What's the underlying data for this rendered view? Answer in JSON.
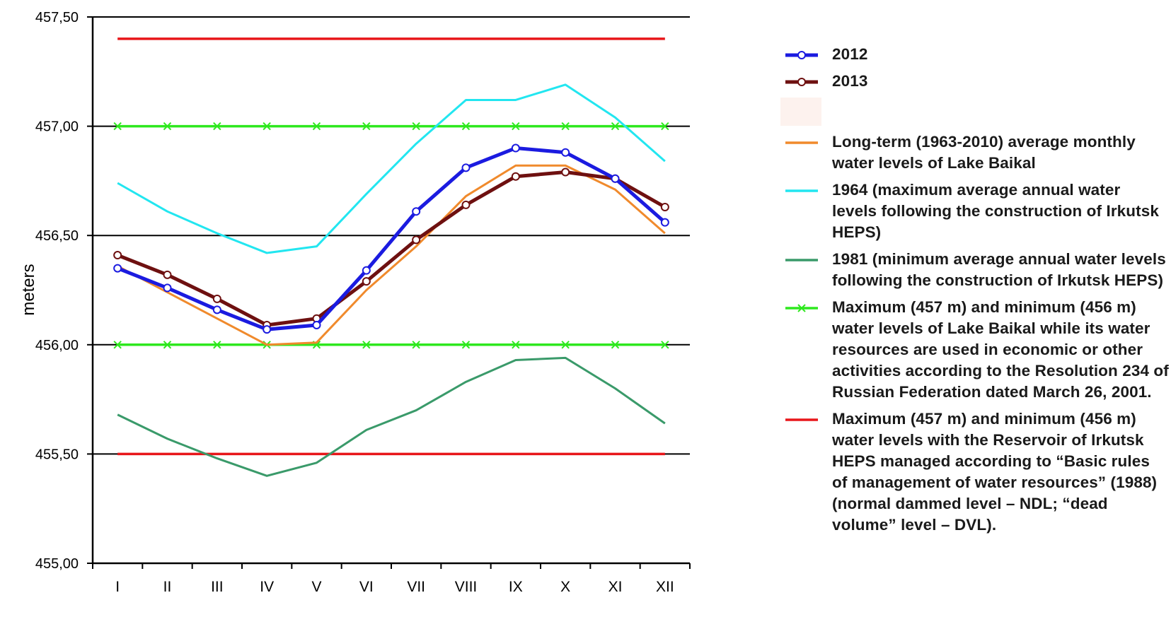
{
  "chart_data": {
    "type": "line",
    "categories": [
      "I",
      "II",
      "III",
      "IV",
      "V",
      "VI",
      "VII",
      "VIII",
      "IX",
      "X",
      "XI",
      "XII"
    ],
    "ylabel": "meters",
    "ylim": [
      455.0,
      457.5
    ],
    "yticks": [
      455.0,
      455.5,
      456.0,
      456.5,
      457.0,
      457.5
    ],
    "ytick_labels": [
      "455,00",
      "455,50",
      "456,00",
      "456,50",
      "457,00",
      "457,50"
    ],
    "grid": "horizontal",
    "legend_position": "right",
    "series": [
      {
        "name": "Maximum (457 m) and minimum (456 m) water levels with the Reservoir of Irkutsk HEPS managed according to “Basic rules of management of water resources” (1988) (normal dammed level – NDL; “dead volume” level – DVL).",
        "legend_key": "red_upper",
        "color": "#e8161a",
        "marker": "none",
        "values": [
          457.4,
          457.4,
          457.4,
          457.4,
          457.4,
          457.4,
          457.4,
          457.4,
          457.4,
          457.4,
          457.4,
          457.4
        ]
      },
      {
        "name": "",
        "legend_key": "red_lower",
        "color": "#e8161a",
        "marker": "none",
        "values": [
          455.5,
          455.5,
          455.5,
          455.5,
          455.5,
          455.5,
          455.5,
          455.5,
          455.5,
          455.5,
          455.5,
          455.5
        ]
      },
      {
        "name": "Maximum (457 m) and minimum (456 m) water levels of Lake Baikal while its water resources are used in economic or other activities according to the Resolution 234 of Russian Federation dated March 26, 2001.",
        "legend_key": "green_upper",
        "color": "#2ee81e",
        "marker": "x",
        "values": [
          457.0,
          457.0,
          457.0,
          457.0,
          457.0,
          457.0,
          457.0,
          457.0,
          457.0,
          457.0,
          457.0,
          457.0
        ]
      },
      {
        "name": "",
        "legend_key": "green_lower",
        "color": "#2ee81e",
        "marker": "x",
        "values": [
          456.0,
          456.0,
          456.0,
          456.0,
          456.0,
          456.0,
          456.0,
          456.0,
          456.0,
          456.0,
          456.0,
          456.0
        ]
      },
      {
        "name": "1964 (maximum average annual water levels following the construction of Irkutsk HEPS)",
        "legend_key": "cyan",
        "color": "#22e6f0",
        "marker": "none",
        "values": [
          456.74,
          456.61,
          456.51,
          456.42,
          456.45,
          456.69,
          456.92,
          457.12,
          457.12,
          457.19,
          457.04,
          456.84
        ]
      },
      {
        "name": "1981 (minimum average annual water levels following the construction of Irkutsk HEPS)",
        "legend_key": "seagreen",
        "color": "#3a9a6a",
        "marker": "none",
        "values": [
          455.68,
          455.57,
          455.48,
          455.4,
          455.46,
          455.61,
          455.7,
          455.83,
          455.93,
          455.94,
          455.8,
          455.64
        ]
      },
      {
        "name": "Long-term (1963-2010) average monthly water levels of Lake Baikal",
        "legend_key": "orange",
        "color": "#f08a2c",
        "marker": "none",
        "values": [
          456.36,
          456.24,
          456.12,
          456.0,
          456.01,
          456.25,
          456.45,
          456.68,
          456.82,
          456.82,
          456.71,
          456.51
        ]
      },
      {
        "name": "2013",
        "legend_key": "y2013",
        "color": "#6e1010",
        "marker": "circle",
        "values": [
          456.41,
          456.32,
          456.21,
          456.09,
          456.12,
          456.29,
          456.48,
          456.64,
          456.77,
          456.79,
          456.76,
          456.63
        ]
      },
      {
        "name": "2012",
        "legend_key": "y2012",
        "color": "#1b1be0",
        "marker": "circle",
        "values": [
          456.35,
          456.26,
          456.16,
          456.07,
          456.09,
          456.34,
          456.61,
          456.81,
          456.9,
          456.88,
          456.76,
          456.56
        ]
      }
    ],
    "legend": [
      {
        "key": "y2012",
        "label": "2012",
        "color": "#1b1be0",
        "marker": "circle"
      },
      {
        "key": "y2013",
        "label": "2013",
        "color": "#6e1010",
        "marker": "circle"
      },
      {
        "key": "gap",
        "label": "",
        "color": "#fdf2ee",
        "marker": "none"
      },
      {
        "key": "orange",
        "label": "Long-term (1963-2010) average monthly water levels of Lake Baikal",
        "color": "#f08a2c",
        "marker": "none"
      },
      {
        "key": "cyan",
        "label": "1964 (maximum average annual water levels following the construction of Irkutsk HEPS)",
        "color": "#22e6f0",
        "marker": "none"
      },
      {
        "key": "seagreen",
        "label": "1981 (minimum average annual water levels following the construction of Irkutsk HEPS)",
        "color": "#3a9a6a",
        "marker": "none"
      },
      {
        "key": "green",
        "label": "Maximum (457 m) and minimum (456 m) water levels of Lake Baikal while its water resources are used in economic or other activities according to the Resolution 234 of Russian Federation dated March 26, 2001.",
        "color": "#2ee81e",
        "marker": "x"
      },
      {
        "key": "red",
        "label": "Maximum (457 m) and minimum (456 m) water levels with the Reservoir of Irkutsk HEPS managed according to “Basic rules of management of water resources” (1988) (normal dammed level – NDL; “dead volume” level – DVL).",
        "color": "#e8161a",
        "marker": "none"
      }
    ]
  }
}
